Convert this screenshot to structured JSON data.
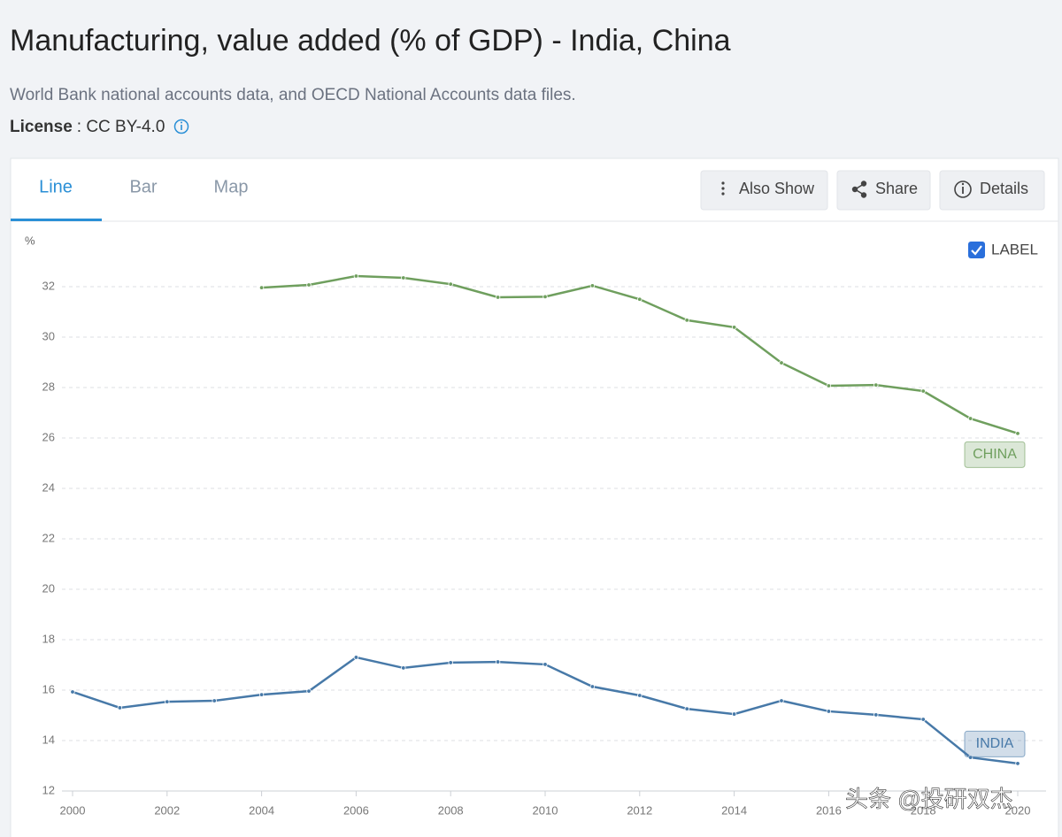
{
  "header": {
    "title": "Manufacturing, value added (% of GDP) - India, China",
    "source": "World Bank national accounts data, and OECD National Accounts data files.",
    "license_label": "License",
    "license_value": ": CC BY-4.0"
  },
  "tabs": [
    "Line",
    "Bar",
    "Map"
  ],
  "buttons": [
    "Also Show",
    "Share",
    "Details"
  ],
  "checkbox_label": "LABEL",
  "watermark": "头条 @投研双杰",
  "chart_data": {
    "type": "line",
    "y_unit": "%",
    "x": [
      2000,
      2001,
      2002,
      2003,
      2004,
      2005,
      2006,
      2007,
      2008,
      2009,
      2010,
      2011,
      2012,
      2013,
      2014,
      2015,
      2016,
      2017,
      2018,
      2019,
      2020
    ],
    "series": [
      {
        "name": "CHINA",
        "color": "#6f9f5e",
        "values": [
          null,
          null,
          null,
          null,
          31.96,
          32.07,
          32.42,
          32.35,
          32.1,
          31.58,
          31.6,
          32.04,
          31.5,
          30.67,
          30.39,
          28.98,
          28.07,
          28.1,
          27.86,
          26.77,
          26.18
        ]
      },
      {
        "name": "INDIA",
        "color": "#4779a8",
        "values": [
          15.93,
          15.3,
          15.54,
          15.58,
          15.82,
          15.96,
          17.3,
          16.88,
          17.09,
          17.12,
          17.02,
          16.14,
          15.79,
          15.26,
          15.05,
          15.58,
          15.16,
          15.02,
          14.84,
          13.33,
          13.09
        ]
      }
    ],
    "xlim": [
      2000,
      2020
    ],
    "xticks": [
      2000,
      2002,
      2004,
      2006,
      2008,
      2010,
      2012,
      2014,
      2016,
      2018,
      2020
    ],
    "ylim": [
      12,
      33
    ],
    "yticks": [
      12,
      14,
      16,
      18,
      20,
      22,
      24,
      26,
      28,
      30,
      32
    ],
    "grid": true,
    "labels": true
  }
}
